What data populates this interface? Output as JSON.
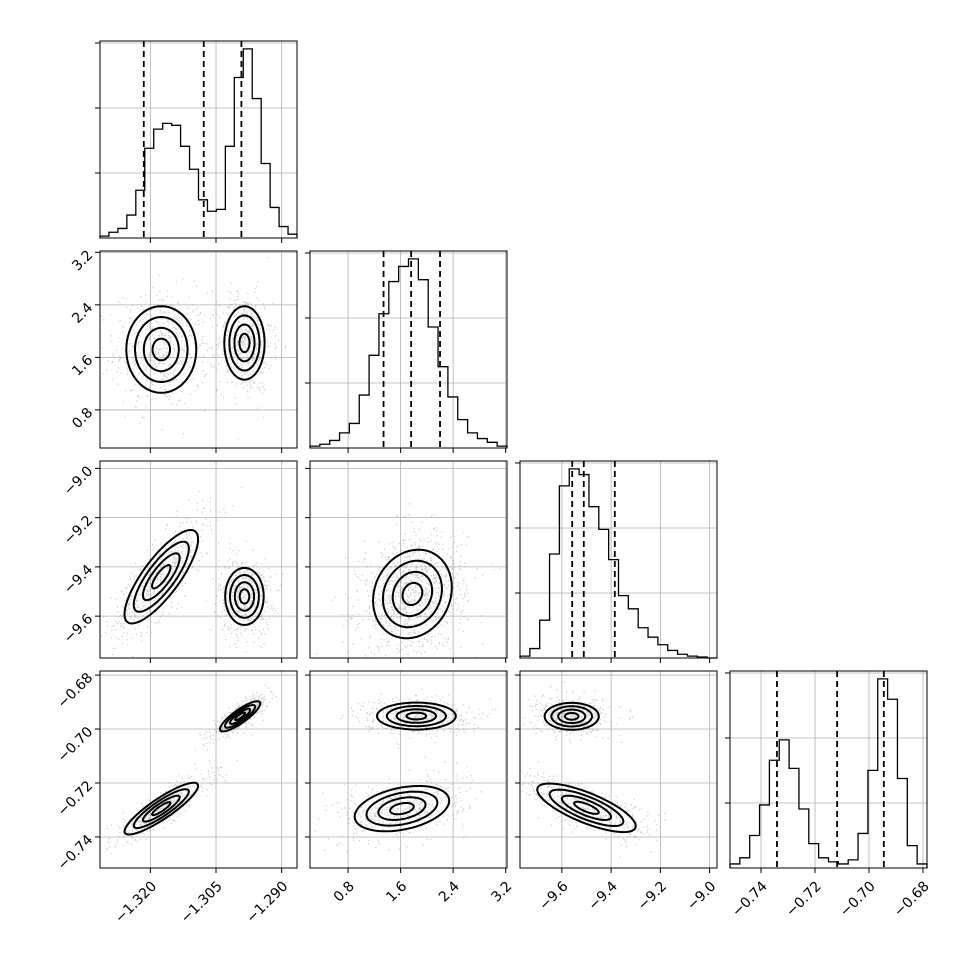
{
  "chart_data": {
    "type": "corner",
    "parameters": [
      {
        "range": [
          -1.3315,
          -1.2865
        ],
        "ticks": [
          -1.32,
          -1.305,
          -1.29
        ],
        "tick_labels": [
          "−1.320",
          "−1.305",
          "−1.290"
        ],
        "quantiles": [
          -1.3215,
          -1.3078,
          -1.2992
        ]
      },
      {
        "range": [
          0.22,
          3.22
        ],
        "ticks": [
          0.8,
          1.6,
          2.4,
          3.2
        ],
        "tick_labels": [
          "0.8",
          "1.6",
          "2.4",
          "3.2"
        ],
        "quantiles": [
          1.34,
          1.76,
          2.2
        ]
      },
      {
        "range": [
          -9.77,
          -8.97
        ],
        "ticks": [
          -9.6,
          -9.4,
          -9.2,
          -9.0
        ],
        "tick_labels": [
          "−9.6",
          "−9.4",
          "−9.2",
          "−9.0"
        ],
        "quantiles": [
          -9.558,
          -9.511,
          -9.385
        ]
      },
      {
        "range": [
          -0.7515,
          -0.6785
        ],
        "ticks": [
          -0.74,
          -0.72,
          -0.7,
          -0.68
        ],
        "tick_labels": [
          "−0.74",
          "−0.72",
          "−0.70",
          "−0.68"
        ],
        "quantiles": [
          -0.7341,
          -0.7118,
          -0.6945
        ]
      }
    ],
    "histograms": [
      {
        "counts": [
          0.01,
          0.03,
          0.05,
          0.12,
          0.25,
          0.47,
          0.57,
          0.6,
          0.59,
          0.48,
          0.36,
          0.2,
          0.14,
          0.15,
          0.48,
          0.84,
          0.99,
          0.73,
          0.39,
          0.16,
          0.06,
          0.02
        ]
      },
      {
        "counts": [
          0.01,
          0.02,
          0.04,
          0.08,
          0.13,
          0.28,
          0.49,
          0.71,
          0.88,
          0.96,
          1.0,
          0.89,
          0.64,
          0.43,
          0.27,
          0.15,
          0.08,
          0.05,
          0.03,
          0.01
        ]
      },
      {
        "counts": [
          0.01,
          0.05,
          0.2,
          0.55,
          0.91,
          1.0,
          0.97,
          0.8,
          0.68,
          0.52,
          0.33,
          0.26,
          0.16,
          0.11,
          0.07,
          0.04,
          0.02,
          0.01,
          0.005,
          0
        ]
      },
      {
        "counts": [
          0.02,
          0.05,
          0.16,
          0.31,
          0.53,
          0.63,
          0.49,
          0.29,
          0.12,
          0.05,
          0.03,
          0.02,
          0.04,
          0.17,
          0.48,
          0.93,
          0.83,
          0.44,
          0.11,
          0.02
        ]
      }
    ],
    "pairs": [
      {
        "x": 0,
        "y": 1,
        "modes": [
          {
            "cx": -1.3175,
            "cy": 1.72,
            "sx": 0.004,
            "sy": 0.33,
            "rho": 0,
            "w": 0.5
          },
          {
            "cx": -1.2985,
            "cy": 1.82,
            "sx": 0.0023,
            "sy": 0.28,
            "rho": 0,
            "w": 0.5
          }
        ]
      },
      {
        "x": 0,
        "y": 2,
        "modes": [
          {
            "cx": -1.3175,
            "cy": -9.44,
            "sx": 0.0042,
            "sy": 0.095,
            "rho": 0.8,
            "w": 0.5
          },
          {
            "cx": -1.2985,
            "cy": -9.52,
            "sx": 0.0022,
            "sy": 0.058,
            "rho": 0,
            "w": 0.5
          }
        ]
      },
      {
        "x": 0,
        "y": 3,
        "modes": [
          {
            "cx": -1.3175,
            "cy": -0.7295,
            "sx": 0.0042,
            "sy": 0.0048,
            "rho": 0.88,
            "w": 0.5
          },
          {
            "cx": -1.2995,
            "cy": -0.6953,
            "sx": 0.0023,
            "sy": 0.0028,
            "rho": 0.85,
            "w": 0.5
          }
        ]
      },
      {
        "x": 1,
        "y": 2,
        "modes": [
          {
            "cx": 1.78,
            "cy": -9.51,
            "sx": 0.3,
            "sy": 0.09,
            "rho": 0.15,
            "w": 1
          }
        ]
      },
      {
        "x": 1,
        "y": 3,
        "modes": [
          {
            "cx": 1.62,
            "cy": -0.7295,
            "sx": 0.36,
            "sy": 0.0042,
            "rho": 0.35,
            "w": 0.5
          },
          {
            "cx": 1.84,
            "cy": -0.6952,
            "sx": 0.3,
            "sy": 0.0025,
            "rho": 0,
            "w": 0.5
          }
        ]
      },
      {
        "x": 2,
        "y": 3,
        "modes": [
          {
            "cx": -9.5,
            "cy": -0.7292,
            "sx": 0.1,
            "sy": 0.0045,
            "rho": -0.75,
            "w": 0.5
          },
          {
            "cx": -9.56,
            "cy": -0.6953,
            "sx": 0.055,
            "sy": 0.0025,
            "rho": 0,
            "w": 0.5
          }
        ]
      }
    ],
    "grid": true,
    "quantile_lines": "dashed"
  }
}
